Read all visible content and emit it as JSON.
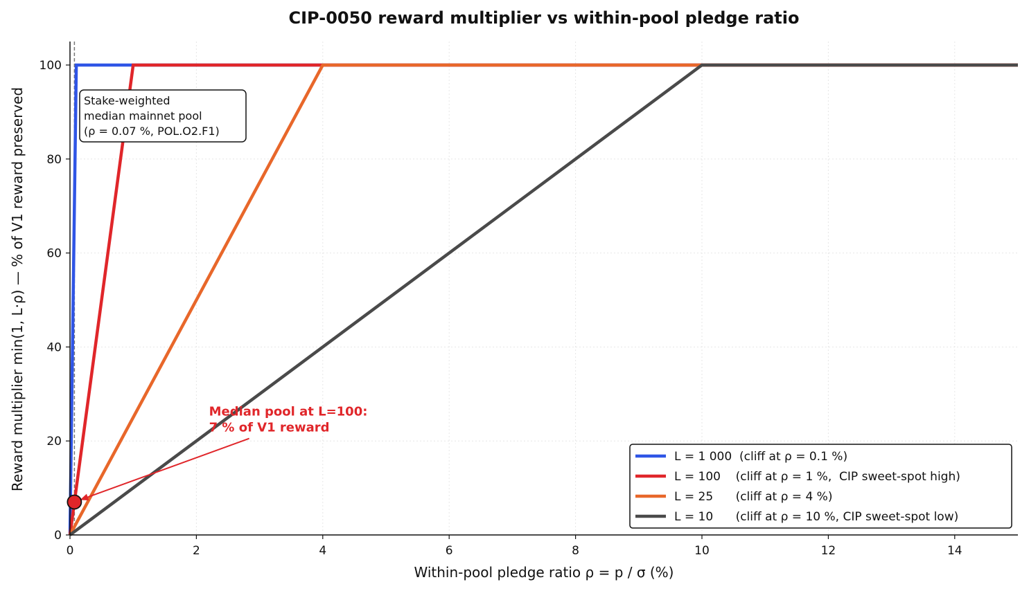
{
  "chart_data": {
    "type": "line",
    "title": "CIP-0050 reward multiplier vs within-pool pledge ratio",
    "xlabel": "Within-pool pledge ratio  ρ = p / σ  (%)",
    "ylabel": "Reward multiplier min(1, L·ρ)  —  % of V1 reward preserved",
    "xlim": [
      0,
      15
    ],
    "ylim": [
      0,
      105
    ],
    "x_ticks": [
      0,
      2,
      4,
      6,
      8,
      10,
      12,
      14
    ],
    "y_ticks": [
      0,
      20,
      40,
      60,
      80,
      100
    ],
    "grid": true,
    "legend_position": "lower-right",
    "series": [
      {
        "name": "L = 1 000  (cliff at ρ = 0.1 %)",
        "color": "#2f55e6",
        "x": [
          0,
          0.1,
          15
        ],
        "y": [
          0,
          100,
          100
        ]
      },
      {
        "name": "L = 100    (cliff at ρ = 1 %,  CIP sweet-spot high)",
        "color": "#e0262a",
        "x": [
          0,
          1,
          15
        ],
        "y": [
          0,
          100,
          100
        ]
      },
      {
        "name": "L = 25      (cliff at ρ = 4 %)",
        "color": "#e8672a",
        "x": [
          0,
          4,
          15
        ],
        "y": [
          0,
          100,
          100
        ]
      },
      {
        "name": "L = 10      (cliff at ρ = 10 %, CIP sweet-spot low)",
        "color": "#4a4a4a",
        "x": [
          0,
          10,
          15
        ],
        "y": [
          0,
          100,
          100
        ]
      }
    ],
    "reference_line": {
      "x": 0.07
    },
    "median_point": {
      "x": 0.07,
      "y": 7,
      "color": "#e0262a"
    },
    "annotations": {
      "median_box": [
        "Stake-weighted",
        "median mainnet pool",
        "(ρ = 0.07 %, POL.O2.F1)"
      ],
      "median_label": [
        "Median pool at L=100:",
        "7 % of V1 reward"
      ],
      "median_label_anchor": {
        "x": 2.2,
        "y": 22
      }
    }
  }
}
